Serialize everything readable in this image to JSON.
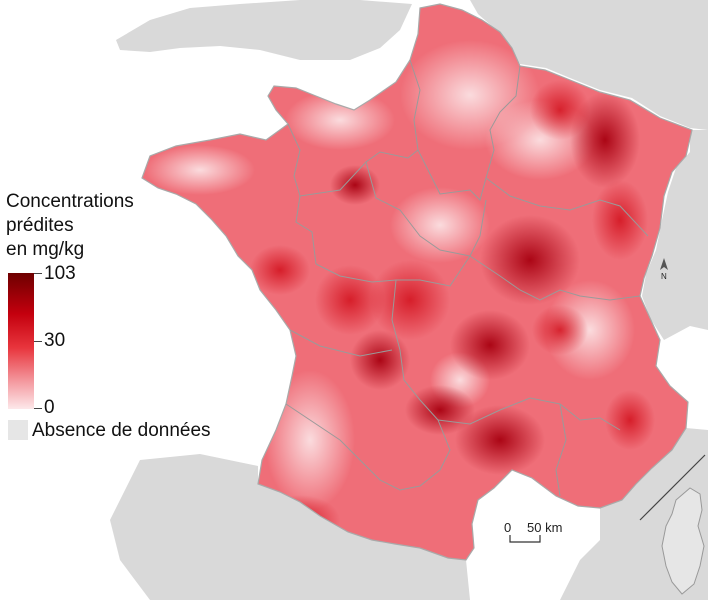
{
  "legend": {
    "title_lines": [
      "Concentrations",
      "prédites",
      "en mg/kg"
    ],
    "max_label": "103",
    "mid_label": "30",
    "min_label": "0",
    "no_data_label": "Absence de données"
  },
  "scale_bar": {
    "start_label": "0",
    "end_label": "50 km"
  },
  "north_arrow": {
    "label": "N"
  },
  "colors": {
    "land_background": "#d9d9d9",
    "sea": "#ffffff",
    "low": "#fde8ea",
    "mid": "#e8353d",
    "high": "#6e0000",
    "no_data": "#e6e6e6"
  }
}
